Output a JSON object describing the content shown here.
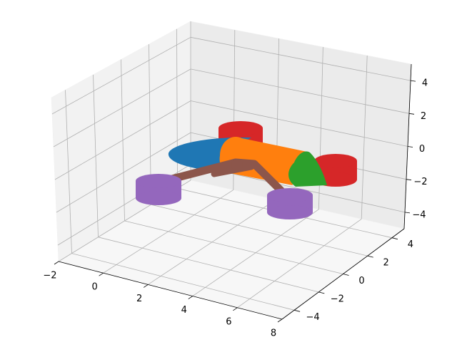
{
  "chart_data": {
    "type": "3d-surface",
    "title": "",
    "xlabel": "",
    "ylabel": "",
    "zlabel": "",
    "xlim": [
      -2,
      8
    ],
    "ylim": [
      -5,
      5
    ],
    "zlim": [
      -5,
      5
    ],
    "x_ticks": [
      "−2",
      "0",
      "2",
      "4",
      "6",
      "8"
    ],
    "y_ticks": [
      "−4",
      "−2",
      "0",
      "2",
      "4"
    ],
    "z_ticks": [
      "−4",
      "−2",
      "0",
      "2",
      "4"
    ],
    "grid": true,
    "legend": "none",
    "colors": {
      "blue": "#1f77b4",
      "orange": "#ff7f0e",
      "green": "#2ca02c",
      "red": "#d62728",
      "purple": "#9467bd",
      "brown": "#8c564b"
    },
    "objects": [
      {
        "shape": "nose-cone",
        "color": "blue"
      },
      {
        "shape": "body-cylinder",
        "color": "orange"
      },
      {
        "shape": "tail-cone",
        "color": "green"
      },
      {
        "shape": "rotor-disc-upper",
        "color": "red"
      },
      {
        "shape": "rotor-disc-right",
        "color": "red"
      },
      {
        "shape": "rotor-disc-left",
        "color": "purple"
      },
      {
        "shape": "rotor-disc-front",
        "color": "purple"
      },
      {
        "shape": "arm",
        "color": "brown"
      },
      {
        "shape": "arm",
        "color": "brown"
      }
    ]
  }
}
